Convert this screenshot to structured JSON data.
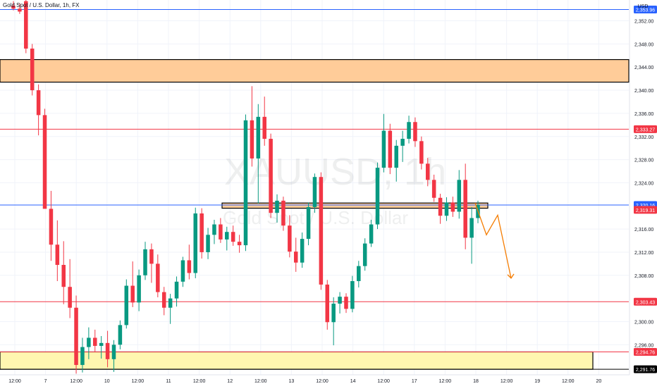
{
  "header": {
    "symbol_title": "Gold Spot / U.S. Dollar, 1h, FX",
    "currency": "USD"
  },
  "watermark": {
    "symbol": "XAUUSD, 1h",
    "description": "Gold Spot / U.S. Dollar"
  },
  "chart_data": {
    "type": "candlestick",
    "ylim": [
      2290.8,
      2355.6
    ],
    "price_ticks": [
      2352.0,
      2348.0,
      2344.0,
      2340.0,
      2336.0,
      2332.0,
      2328.0,
      2324.0,
      2316.0,
      2312.0,
      2308.0,
      2300.0,
      2296.0
    ],
    "time_ticks": [
      "12:00",
      "7",
      "12:00",
      "10",
      "12:00",
      "11",
      "12:00",
      "12",
      "12:00",
      "13",
      "12:00",
      "14",
      "12:00",
      "17",
      "12:00",
      "18",
      "12:00",
      "19",
      "12:00",
      "20"
    ],
    "price_labels": [
      {
        "value": 2353.96,
        "text": "2,353.96",
        "color": "#2962ff"
      },
      {
        "value": 2333.27,
        "text": "2,333.27",
        "color": "#f23645"
      },
      {
        "value": 2320.16,
        "text": "2,320.16",
        "color": "#2962ff"
      },
      {
        "value": 2319.31,
        "text": "2,319.31",
        "color": "#f23645"
      },
      {
        "value": 2303.43,
        "text": "2,303.43",
        "color": "#f23645"
      },
      {
        "value": 2294.76,
        "text": "2,294.76",
        "color": "#f23645"
      },
      {
        "value": 2291.76,
        "text": "2,291.76",
        "color": "#000000"
      }
    ],
    "horizontal_lines": [
      {
        "value": 2353.96,
        "color": "#2962ff"
      },
      {
        "value": 2333.27,
        "color": "#f23645"
      },
      {
        "value": 2320.16,
        "color": "#2962ff"
      },
      {
        "value": 2303.43,
        "color": "#f23645"
      },
      {
        "value": 2294.76,
        "color": "#f23645"
      },
      {
        "value": 2291.76,
        "color": "#000000"
      }
    ],
    "zones": [
      {
        "top": 2345.3,
        "bottom": 2341.4,
        "fill": "#ffcc99",
        "stroke": "#000000",
        "extend": "full"
      },
      {
        "top": 2320.5,
        "bottom": 2319.6,
        "fill": "#ffcc99",
        "stroke": "#000000",
        "extend": "segment"
      },
      {
        "top": 2294.76,
        "bottom": 2291.76,
        "fill": "#fff6b0",
        "stroke": "#000000",
        "extend": "to-date"
      }
    ],
    "projection": {
      "color": "#f57c00",
      "points": [
        [
          2320.5,
          0
        ],
        [
          2315.0,
          1
        ],
        [
          2318.4,
          2
        ],
        [
          2307.5,
          3
        ]
      ]
    },
    "candles": [
      {
        "o": 2354.6,
        "h": 2355.4,
        "l": 2353.8,
        "c": 2354.1
      },
      {
        "o": 2354.1,
        "h": 2355.0,
        "l": 2353.2,
        "c": 2353.6
      },
      {
        "o": 2355.4,
        "h": 2356.1,
        "l": 2346.4,
        "c": 2347.2
      },
      {
        "o": 2347.2,
        "h": 2348.0,
        "l": 2339.1,
        "c": 2340.0
      },
      {
        "o": 2340.0,
        "h": 2341.0,
        "l": 2332.2,
        "c": 2335.7
      },
      {
        "o": 2335.7,
        "h": 2336.8,
        "l": 2320.0,
        "c": 2319.5
      },
      {
        "o": 2319.5,
        "h": 2322.6,
        "l": 2310.5,
        "c": 2313.3
      },
      {
        "o": 2313.3,
        "h": 2317.5,
        "l": 2307.0,
        "c": 2309.8
      },
      {
        "o": 2309.8,
        "h": 2313.9,
        "l": 2303.0,
        "c": 2306.0
      },
      {
        "o": 2306.0,
        "h": 2310.8,
        "l": 2300.6,
        "c": 2302.4
      },
      {
        "o": 2302.4,
        "h": 2304.5,
        "l": 2291.0,
        "c": 2292.5
      },
      {
        "o": 2292.5,
        "h": 2297.2,
        "l": 2291.2,
        "c": 2295.6
      },
      {
        "o": 2295.6,
        "h": 2299.0,
        "l": 2293.5,
        "c": 2297.2
      },
      {
        "o": 2297.2,
        "h": 2298.6,
        "l": 2294.8,
        "c": 2295.8
      },
      {
        "o": 2295.8,
        "h": 2297.5,
        "l": 2293.6,
        "c": 2296.3
      },
      {
        "o": 2296.3,
        "h": 2298.4,
        "l": 2292.1,
        "c": 2293.5
      },
      {
        "o": 2293.5,
        "h": 2296.8,
        "l": 2291.3,
        "c": 2296.0
      },
      {
        "o": 2296.0,
        "h": 2300.2,
        "l": 2295.2,
        "c": 2299.4
      },
      {
        "o": 2299.4,
        "h": 2307.3,
        "l": 2298.8,
        "c": 2306.2
      },
      {
        "o": 2306.2,
        "h": 2310.4,
        "l": 2302.5,
        "c": 2303.3
      },
      {
        "o": 2303.3,
        "h": 2309.0,
        "l": 2301.8,
        "c": 2308.0
      },
      {
        "o": 2308.0,
        "h": 2313.8,
        "l": 2307.2,
        "c": 2312.5
      },
      {
        "o": 2312.5,
        "h": 2313.5,
        "l": 2306.7,
        "c": 2310.0
      },
      {
        "o": 2310.0,
        "h": 2311.6,
        "l": 2304.2,
        "c": 2305.1
      },
      {
        "o": 2305.1,
        "h": 2306.0,
        "l": 2301.1,
        "c": 2302.4
      },
      {
        "o": 2302.4,
        "h": 2304.8,
        "l": 2299.6,
        "c": 2304.0
      },
      {
        "o": 2304.0,
        "h": 2307.8,
        "l": 2302.6,
        "c": 2306.9
      },
      {
        "o": 2306.9,
        "h": 2311.2,
        "l": 2306.0,
        "c": 2310.6
      },
      {
        "o": 2310.6,
        "h": 2313.3,
        "l": 2307.3,
        "c": 2308.4
      },
      {
        "o": 2308.4,
        "h": 2319.7,
        "l": 2307.5,
        "c": 2318.7
      },
      {
        "o": 2318.7,
        "h": 2319.6,
        "l": 2310.9,
        "c": 2312.0
      },
      {
        "o": 2312.0,
        "h": 2316.2,
        "l": 2310.8,
        "c": 2315.0
      },
      {
        "o": 2315.0,
        "h": 2317.6,
        "l": 2313.4,
        "c": 2316.8
      },
      {
        "o": 2316.8,
        "h": 2317.9,
        "l": 2313.6,
        "c": 2314.2
      },
      {
        "o": 2314.2,
        "h": 2316.4,
        "l": 2312.3,
        "c": 2315.5
      },
      {
        "o": 2315.5,
        "h": 2316.6,
        "l": 2313.1,
        "c": 2313.8
      },
      {
        "o": 2313.8,
        "h": 2315.0,
        "l": 2311.9,
        "c": 2313.2
      },
      {
        "o": 2313.2,
        "h": 2335.8,
        "l": 2312.2,
        "c": 2334.8
      },
      {
        "o": 2334.8,
        "h": 2340.7,
        "l": 2326.8,
        "c": 2328.2
      },
      {
        "o": 2328.2,
        "h": 2337.6,
        "l": 2320.4,
        "c": 2335.4
      },
      {
        "o": 2335.4,
        "h": 2338.9,
        "l": 2330.4,
        "c": 2331.6
      },
      {
        "o": 2331.6,
        "h": 2332.5,
        "l": 2317.9,
        "c": 2318.8
      },
      {
        "o": 2318.8,
        "h": 2322.0,
        "l": 2317.1,
        "c": 2320.9
      },
      {
        "o": 2320.9,
        "h": 2321.6,
        "l": 2315.7,
        "c": 2316.6
      },
      {
        "o": 2316.6,
        "h": 2318.4,
        "l": 2311.1,
        "c": 2312.1
      },
      {
        "o": 2312.1,
        "h": 2314.5,
        "l": 2308.6,
        "c": 2310.2
      },
      {
        "o": 2310.2,
        "h": 2315.4,
        "l": 2309.3,
        "c": 2314.3
      },
      {
        "o": 2314.3,
        "h": 2320.6,
        "l": 2313.2,
        "c": 2319.8
      },
      {
        "o": 2319.8,
        "h": 2325.6,
        "l": 2318.8,
        "c": 2325.0
      },
      {
        "o": 2325.0,
        "h": 2325.8,
        "l": 2305.5,
        "c": 2306.4
      },
      {
        "o": 2306.4,
        "h": 2307.2,
        "l": 2298.6,
        "c": 2299.9
      },
      {
        "o": 2299.9,
        "h": 2304.2,
        "l": 2295.9,
        "c": 2303.1
      },
      {
        "o": 2303.1,
        "h": 2305.1,
        "l": 2301.4,
        "c": 2304.3
      },
      {
        "o": 2304.3,
        "h": 2304.9,
        "l": 2301.5,
        "c": 2302.2
      },
      {
        "o": 2302.2,
        "h": 2307.9,
        "l": 2301.6,
        "c": 2307.0
      },
      {
        "o": 2307.0,
        "h": 2310.5,
        "l": 2305.9,
        "c": 2309.6
      },
      {
        "o": 2309.6,
        "h": 2314.4,
        "l": 2308.8,
        "c": 2313.5
      },
      {
        "o": 2313.5,
        "h": 2317.6,
        "l": 2312.9,
        "c": 2316.8
      },
      {
        "o": 2316.8,
        "h": 2327.5,
        "l": 2316.0,
        "c": 2326.6
      },
      {
        "o": 2326.6,
        "h": 2335.9,
        "l": 2325.8,
        "c": 2333.0
      },
      {
        "o": 2333.0,
        "h": 2334.2,
        "l": 2325.5,
        "c": 2326.6
      },
      {
        "o": 2326.6,
        "h": 2331.4,
        "l": 2324.2,
        "c": 2330.4
      },
      {
        "o": 2330.4,
        "h": 2333.0,
        "l": 2327.6,
        "c": 2331.6
      },
      {
        "o": 2331.6,
        "h": 2335.6,
        "l": 2330.8,
        "c": 2334.5
      },
      {
        "o": 2334.5,
        "h": 2335.3,
        "l": 2330.2,
        "c": 2331.2
      },
      {
        "o": 2331.2,
        "h": 2332.0,
        "l": 2326.3,
        "c": 2327.3
      },
      {
        "o": 2327.3,
        "h": 2328.3,
        "l": 2323.4,
        "c": 2324.5
      },
      {
        "o": 2324.5,
        "h": 2325.4,
        "l": 2320.7,
        "c": 2321.4
      },
      {
        "o": 2321.4,
        "h": 2322.1,
        "l": 2316.9,
        "c": 2318.3
      },
      {
        "o": 2318.3,
        "h": 2321.5,
        "l": 2317.4,
        "c": 2320.6
      },
      {
        "o": 2320.6,
        "h": 2321.6,
        "l": 2318.1,
        "c": 2319.0
      },
      {
        "o": 2319.0,
        "h": 2326.2,
        "l": 2317.8,
        "c": 2324.5
      },
      {
        "o": 2324.5,
        "h": 2327.3,
        "l": 2312.5,
        "c": 2314.5
      },
      {
        "o": 2314.5,
        "h": 2319.8,
        "l": 2310.0,
        "c": 2317.9
      },
      {
        "o": 2317.9,
        "h": 2320.9,
        "l": 2317.0,
        "c": 2320.2
      }
    ]
  }
}
